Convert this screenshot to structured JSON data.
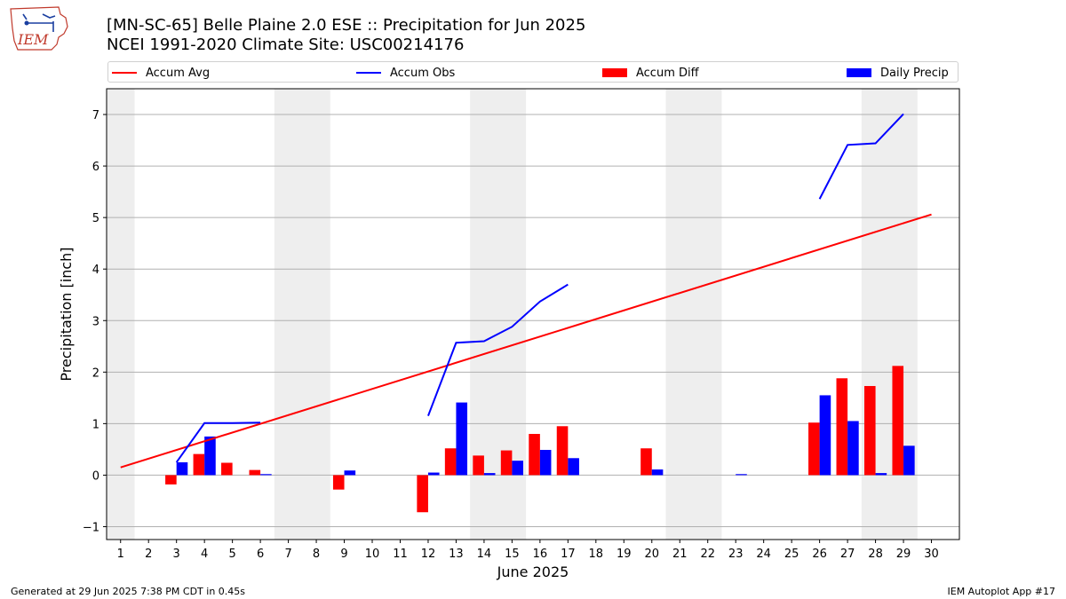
{
  "header": {
    "logo_text": "IEM",
    "title_line1": "[MN-SC-65] Belle Plaine 2.0 ESE :: Precipitation for Jun 2025",
    "title_line2": "NCEI 1991-2020 Climate Site: USC00214176"
  },
  "footer": {
    "generated": "Generated at 29 Jun 2025 7:38 PM CDT in 0.45s",
    "app": "IEM Autoplot App #17"
  },
  "colors": {
    "avg": "#ff0000",
    "obs": "#0000ff",
    "diff": "#ff0000",
    "daily": "#0000ff",
    "weekend_shade": "#eeeeee",
    "grid": "#b0b0b0"
  },
  "chart_data": {
    "type": "bar",
    "xlabel": "June 2025",
    "ylabel": "Precipitation [inch]",
    "xlim": [
      0.5,
      31.0
    ],
    "ylim": [
      -1.25,
      7.5
    ],
    "y_ticks": [
      -1,
      0,
      1,
      2,
      3,
      4,
      5,
      6,
      7
    ],
    "x_ticks": [
      1,
      2,
      3,
      4,
      5,
      6,
      7,
      8,
      9,
      10,
      11,
      12,
      13,
      14,
      15,
      16,
      17,
      18,
      19,
      20,
      21,
      22,
      23,
      24,
      25,
      26,
      27,
      28,
      29,
      30
    ],
    "grid": "horizontal",
    "legend_position": "top",
    "weekend_days": [
      [
        1,
        1
      ],
      [
        7,
        8
      ],
      [
        14,
        15
      ],
      [
        21,
        22
      ],
      [
        28,
        29
      ]
    ],
    "legend": [
      "Accum Avg",
      "Accum Obs",
      "Accum Diff",
      "Daily Precip"
    ],
    "accum_avg": {
      "name": "Accum Avg",
      "x": [
        1,
        30
      ],
      "y": [
        0.15,
        5.06
      ]
    },
    "accum_obs": {
      "name": "Accum Obs",
      "segments": [
        {
          "x": [
            3,
            4,
            5,
            6
          ],
          "y": [
            0.25,
            1.01,
            1.01,
            1.02
          ]
        },
        {
          "x": [
            12,
            13,
            14,
            15,
            16,
            17
          ],
          "y": [
            1.15,
            2.57,
            2.6,
            2.88,
            3.37,
            3.7
          ]
        },
        {
          "x": [
            26,
            27,
            28,
            29
          ],
          "y": [
            5.36,
            6.41,
            6.44,
            7.01
          ]
        }
      ]
    },
    "accum_diff": {
      "name": "Accum Diff",
      "x": [
        3,
        4,
        5,
        6,
        9,
        12,
        13,
        14,
        15,
        16,
        17,
        20,
        26,
        27,
        28,
        29
      ],
      "y": [
        -0.18,
        0.41,
        0.24,
        0.1,
        -0.28,
        -0.72,
        0.52,
        0.38,
        0.48,
        0.8,
        0.95,
        0.52,
        1.02,
        1.88,
        1.73,
        2.12
      ]
    },
    "daily_precip": {
      "name": "Daily Precip",
      "x": [
        3,
        4,
        6,
        9,
        12,
        13,
        14,
        15,
        16,
        17,
        20,
        23,
        26,
        27,
        28,
        29
      ],
      "y": [
        0.25,
        0.75,
        0.02,
        0.09,
        0.05,
        1.41,
        0.04,
        0.28,
        0.49,
        0.33,
        0.11,
        0.02,
        1.55,
        1.05,
        0.04,
        0.57
      ]
    }
  }
}
